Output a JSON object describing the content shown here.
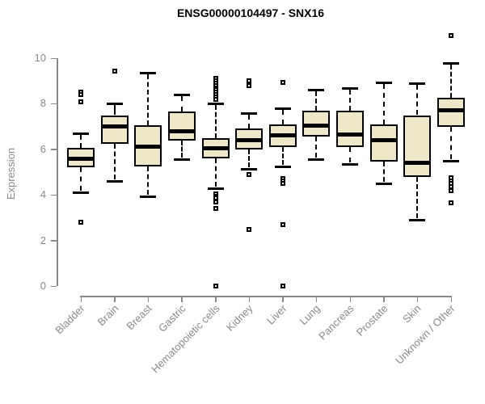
{
  "chart_data": {
    "type": "boxplot",
    "title": "ENSG00000104497 - SNX16",
    "xlabel": "",
    "ylabel": "Expression",
    "yticks": [
      0,
      2,
      4,
      6,
      8,
      10
    ],
    "ylim": [
      0,
      10
    ],
    "grid": false,
    "legend": "none",
    "colors": {
      "box_fill": "#EEE8C8",
      "box_stroke": "#000000",
      "median": "#000000",
      "axis": "#888888",
      "tick_text": "#8A8A8A",
      "title_text": "#000000"
    },
    "categories": [
      "Bladder",
      "Brain",
      "Breast",
      "Gastric",
      "Hematopoietic cells",
      "Kidney",
      "Liver",
      "Lung",
      "Pancreas",
      "Prostate",
      "Skin",
      "Unknown / Other"
    ],
    "boxes": [
      {
        "label": "Bladder",
        "whisker_low": 4.1,
        "q1": 5.2,
        "median": 5.6,
        "q3": 6.05,
        "whisker_high": 6.7,
        "outliers": [
          8.5,
          8.4,
          8.1,
          2.8
        ]
      },
      {
        "label": "Brain",
        "whisker_low": 4.6,
        "q1": 6.25,
        "median": 7.0,
        "q3": 7.5,
        "whisker_high": 8.0,
        "outliers": [
          9.45
        ]
      },
      {
        "label": "Breast",
        "whisker_low": 3.95,
        "q1": 5.25,
        "median": 6.1,
        "q3": 7.05,
        "whisker_high": 9.35,
        "outliers": []
      },
      {
        "label": "Gastric",
        "whisker_low": 5.55,
        "q1": 6.4,
        "median": 6.8,
        "q3": 7.65,
        "whisker_high": 8.4,
        "outliers": []
      },
      {
        "label": "Hematopoietic cells",
        "whisker_low": 4.3,
        "q1": 5.6,
        "median": 6.05,
        "q3": 6.5,
        "whisker_high": 8.0,
        "outliers": [
          9.1,
          9.0,
          8.9,
          8.8,
          8.7,
          8.6,
          8.5,
          8.4,
          8.3,
          8.2,
          4.05,
          3.95,
          3.85,
          3.7,
          3.4,
          0.0
        ]
      },
      {
        "label": "Kidney",
        "whisker_low": 5.15,
        "q1": 6.0,
        "median": 6.4,
        "q3": 6.9,
        "whisker_high": 7.6,
        "outliers": [
          9.0,
          8.8,
          4.9,
          2.5
        ]
      },
      {
        "label": "Liver",
        "whisker_low": 5.25,
        "q1": 6.1,
        "median": 6.6,
        "q3": 7.1,
        "whisker_high": 7.8,
        "outliers": [
          8.95,
          4.7,
          4.6,
          4.5,
          2.7,
          0.0
        ]
      },
      {
        "label": "Lung",
        "whisker_low": 5.55,
        "q1": 6.55,
        "median": 7.05,
        "q3": 7.7,
        "whisker_high": 8.6,
        "outliers": []
      },
      {
        "label": "Pancreas",
        "whisker_low": 5.35,
        "q1": 6.1,
        "median": 6.65,
        "q3": 7.7,
        "whisker_high": 8.7,
        "outliers": []
      },
      {
        "label": "Prostate",
        "whisker_low": 4.5,
        "q1": 5.45,
        "median": 6.4,
        "q3": 7.1,
        "whisker_high": 8.95,
        "outliers": []
      },
      {
        "label": "Skin",
        "whisker_low": 2.9,
        "q1": 4.8,
        "median": 5.4,
        "q3": 7.5,
        "whisker_high": 8.9,
        "outliers": []
      },
      {
        "label": "Unknown / Other",
        "whisker_low": 5.5,
        "q1": 7.0,
        "median": 7.7,
        "q3": 8.25,
        "whisker_high": 9.8,
        "outliers": [
          11.0,
          4.75,
          4.6,
          4.5,
          4.35,
          4.2,
          3.65
        ]
      }
    ]
  }
}
